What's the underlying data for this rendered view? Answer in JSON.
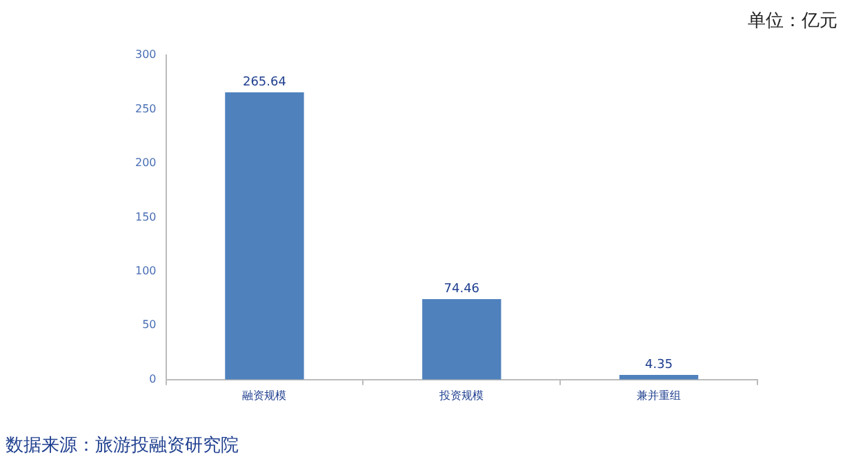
{
  "chart_data": {
    "type": "bar",
    "categories": [
      "融资规模",
      "投资规模",
      "兼并重组"
    ],
    "values": [
      265.64,
      74.46,
      4.35
    ],
    "color": "#4f81bd",
    "ylim": [
      0,
      300
    ],
    "yticks": [
      0,
      50,
      100,
      150,
      200,
      250,
      300
    ],
    "grid": false,
    "data_labels": true,
    "legend": false,
    "annotations": [
      "单位：亿元",
      "数据来源：旅游投融资研究院"
    ]
  }
}
